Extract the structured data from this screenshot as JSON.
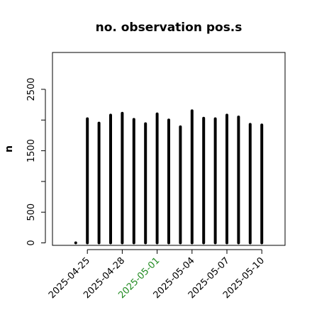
{
  "chart_data": {
    "type": "bar",
    "title": "no. observation pos.s",
    "xlabel": "",
    "ylabel": "n",
    "ylim": [
      -40,
      3100
    ],
    "yticks": [
      0,
      500,
      1500,
      2500
    ],
    "x_tick_labels": [
      {
        "label": "2025-04-25",
        "date": "2025-04-25",
        "color": "#000000"
      },
      {
        "label": "2025-04-28",
        "date": "2025-04-28",
        "color": "#000000"
      },
      {
        "label": "2025-05-01",
        "date": "2025-05-01",
        "color": "#228B22"
      },
      {
        "label": "2025-05-04",
        "date": "2025-05-04",
        "color": "#000000"
      },
      {
        "label": "2025-05-07",
        "date": "2025-05-07",
        "color": "#000000"
      },
      {
        "label": "2025-05-10",
        "date": "2025-05-10",
        "color": "#000000"
      }
    ],
    "xlim": [
      "2025-04-22",
      "2025-05-12"
    ],
    "x": [
      "2025-04-24",
      "2025-04-25",
      "2025-04-26",
      "2025-04-27",
      "2025-04-28",
      "2025-04-29",
      "2025-04-30",
      "2025-05-01",
      "2025-05-02",
      "2025-05-03",
      "2025-05-04",
      "2025-05-05",
      "2025-05-06",
      "2025-05-07",
      "2025-05-08",
      "2025-05-09",
      "2025-05-10"
    ],
    "values": [
      0,
      2020,
      1950,
      2080,
      2110,
      2010,
      1940,
      2100,
      2000,
      1890,
      2150,
      2030,
      2020,
      2080,
      2050,
      1930,
      1920
    ],
    "grid": false,
    "bar_color": "#000000"
  }
}
